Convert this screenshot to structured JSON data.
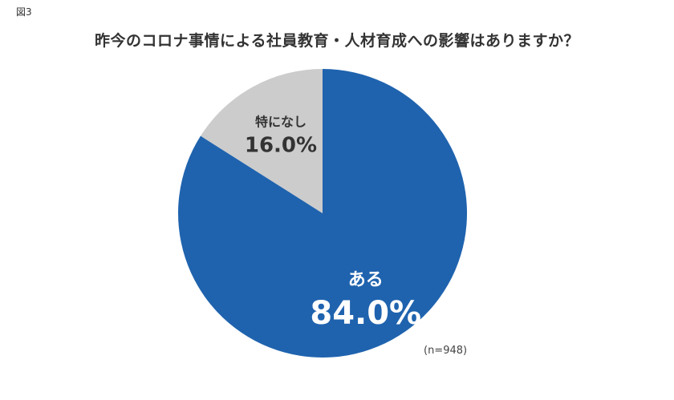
{
  "figure_label": "図3",
  "chart_data": {
    "type": "pie",
    "title": "昨今のコロナ事情による社員教育・人材育成への影響はありますか？",
    "slices": [
      {
        "label": "ある",
        "value": 84.0,
        "value_label": "84.0%",
        "color": "#1f63ae",
        "label_color": "#ffffff"
      },
      {
        "label": "特になし",
        "value": 16.0,
        "value_label": "16.0%",
        "color": "#cccccc",
        "label_color": "#333333"
      }
    ],
    "start_angle_deg": 0,
    "direction": "clockwise",
    "note": "(n=948)"
  }
}
